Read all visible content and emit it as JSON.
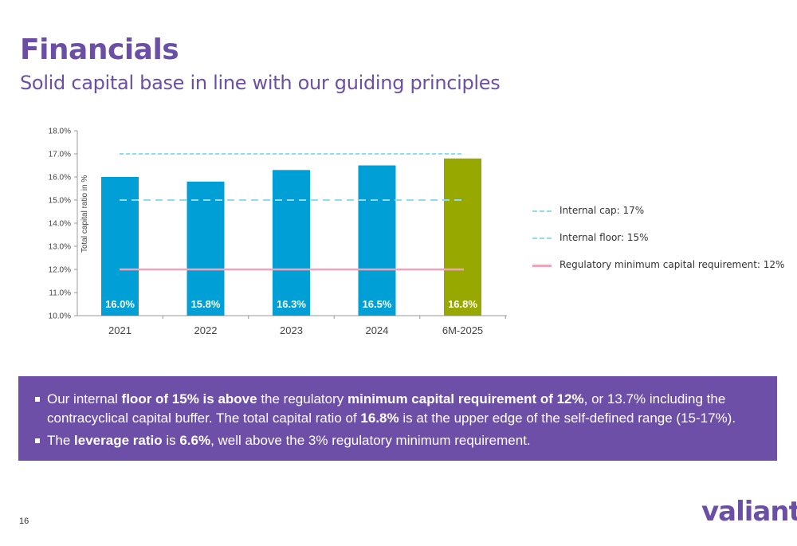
{
  "header": {
    "title": "Financials",
    "subtitle": "Solid capital base in line with our guiding principles"
  },
  "chart_data": {
    "type": "bar",
    "ylabel": "Total capital ratio in %",
    "ylim": [
      10.0,
      18.0
    ],
    "yticks": [
      "10.0%",
      "11.0%",
      "12.0%",
      "13.0%",
      "14.0%",
      "15.0%",
      "16.0%",
      "17.0%",
      "18.0%"
    ],
    "categories": [
      "2021",
      "2022",
      "2023",
      "2024",
      "6M-2025"
    ],
    "values": [
      16.0,
      15.8,
      16.3,
      16.5,
      16.8
    ],
    "value_labels": [
      "16.0%",
      "15.8%",
      "16.3%",
      "16.5%",
      "16.8%"
    ],
    "bar_colors": [
      "#00a0d6",
      "#00a0d6",
      "#00a0d6",
      "#00a0d6",
      "#97a900"
    ],
    "reference_lines": [
      {
        "name": "Internal cap: 17%",
        "value": 17,
        "style": "dashed-fine",
        "color": "#8fdcf2"
      },
      {
        "name": "Internal floor: 15%",
        "value": 15,
        "style": "dashed",
        "color": "#8fdcf2"
      },
      {
        "name": "Regulatory minimum capital requirement: 12%",
        "value": 12,
        "style": "solid",
        "color": "#f0a3b9"
      }
    ],
    "legend_position": "right"
  },
  "info": {
    "bullet1": [
      {
        "t": "Our internal ",
        "b": false
      },
      {
        "t": "floor of 15% is above",
        "b": true
      },
      {
        "t": " the regulatory ",
        "b": false
      },
      {
        "t": "minimum capital requirement of 12%",
        "b": true
      },
      {
        "t": ", or 13.7% including the contracyclical capital buffer. The total capital ratio of ",
        "b": false
      },
      {
        "t": "16.8%",
        "b": true
      },
      {
        "t": " is at the upper edge of the self-defined range (15-17%).",
        "b": false
      }
    ],
    "bullet2": [
      {
        "t": "The ",
        "b": false
      },
      {
        "t": "leverage ratio",
        "b": true
      },
      {
        "t": " is ",
        "b": false
      },
      {
        "t": "6.6%",
        "b": true
      },
      {
        "t": ", well above the 3% regulatory minimum requirement.",
        "b": false
      }
    ]
  },
  "footer": {
    "page_number": "16",
    "logo": "valiant"
  }
}
